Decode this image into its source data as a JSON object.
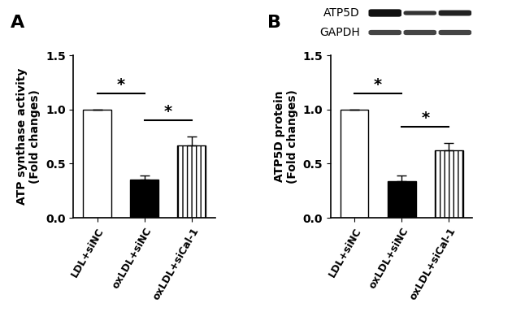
{
  "chart_data": [
    {
      "type": "bar",
      "panel": "A",
      "ylabel": "ATP synthase activity\n(Fold changes)",
      "categories": [
        "LDL+siNC",
        "oxLDL+siNC",
        "oxLDL+siCal-1"
      ],
      "values": [
        1.0,
        0.35,
        0.67
      ],
      "errors": [
        0.0,
        0.04,
        0.08
      ],
      "colors": [
        "#ffffff",
        "#000000",
        "#ffffff"
      ],
      "ylim": [
        0,
        1.5
      ],
      "yticks": [
        {
          "value": 0,
          "label": "0.0"
        },
        {
          "value": 0.5,
          "label": "0.5"
        },
        {
          "value": 1.0,
          "label": "1.0"
        },
        {
          "value": 1.5,
          "label": "1.5"
        }
      ],
      "significance": [
        {
          "pair": [
            0,
            1
          ],
          "label": "*"
        },
        {
          "pair": [
            1,
            2
          ],
          "label": "*"
        }
      ]
    },
    {
      "type": "bar",
      "panel": "B",
      "ylabel": "ATP5D protein\n(Fold changes)",
      "categories": [
        "LDL+siNC",
        "oxLDL+siNC",
        "oxLDL+siCal-1"
      ],
      "values": [
        1.0,
        0.34,
        0.62
      ],
      "errors": [
        0.0,
        0.05,
        0.07
      ],
      "colors": [
        "#ffffff",
        "#000000",
        "#ffffff"
      ],
      "ylim": [
        0,
        1.5
      ],
      "yticks": [
        {
          "value": 0,
          "label": "0.0"
        },
        {
          "value": 0.5,
          "label": "0.5"
        },
        {
          "value": 1.0,
          "label": "1.0"
        },
        {
          "value": 1.5,
          "label": "1.5"
        }
      ],
      "significance": [
        {
          "pair": [
            0,
            1
          ],
          "label": "*"
        },
        {
          "pair": [
            1,
            2
          ],
          "label": "*"
        }
      ],
      "blot_labels": [
        "ATP5D",
        "GAPDH"
      ]
    }
  ]
}
